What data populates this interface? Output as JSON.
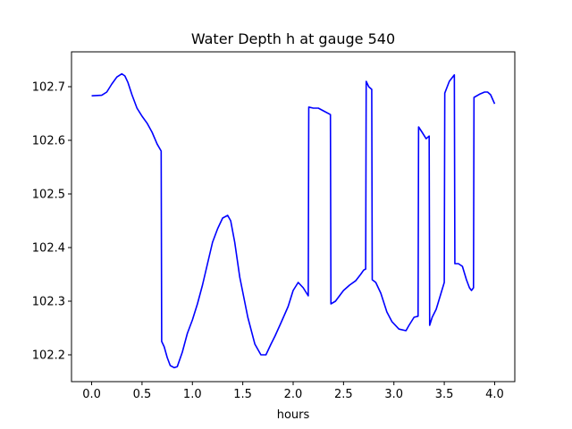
{
  "chart_data": {
    "type": "line",
    "title": "Water Depth h at gauge 540",
    "xlabel": "hours",
    "ylabel": "",
    "xlim": [
      -0.2,
      4.2
    ],
    "ylim": [
      102.15,
      102.765
    ],
    "grid": false,
    "legend": "none",
    "x_ticks": [
      0.0,
      0.5,
      1.0,
      1.5,
      2.0,
      2.5,
      3.0,
      3.5,
      4.0
    ],
    "x_tick_labels": [
      "0.0",
      "0.5",
      "1.0",
      "1.5",
      "2.0",
      "2.5",
      "3.0",
      "3.5",
      "4.0"
    ],
    "y_ticks": [
      102.2,
      102.3,
      102.4,
      102.5,
      102.6,
      102.7
    ],
    "y_tick_labels": [
      "102.2",
      "102.3",
      "102.4",
      "102.5",
      "102.6",
      "102.7"
    ],
    "colors": {
      "line": "#0000ff",
      "axes": "#000000",
      "background": "#ffffff"
    },
    "series": [
      {
        "x": [
          0.0,
          0.1,
          0.15,
          0.2,
          0.25,
          0.3,
          0.33,
          0.36,
          0.4,
          0.45,
          0.5,
          0.55,
          0.6,
          0.65,
          0.69,
          0.695,
          0.72,
          0.75,
          0.78,
          0.82,
          0.85,
          0.9,
          0.95,
          1.0,
          1.05,
          1.1,
          1.15,
          1.2,
          1.25,
          1.3,
          1.35,
          1.38,
          1.42,
          1.47,
          1.55,
          1.62,
          1.68,
          1.73,
          1.78,
          1.82,
          1.88,
          1.95,
          2.0,
          2.05,
          2.1,
          2.15,
          2.155,
          2.2,
          2.25,
          2.3,
          2.37,
          2.375,
          2.42,
          2.5,
          2.56,
          2.62,
          2.67,
          2.7,
          2.72,
          2.725,
          2.75,
          2.78,
          2.785,
          2.82,
          2.87,
          2.93,
          2.98,
          3.05,
          3.12,
          3.15,
          3.2,
          3.24,
          3.245,
          3.28,
          3.32,
          3.35,
          3.355,
          3.38,
          3.42,
          3.46,
          3.5,
          3.505,
          3.55,
          3.6,
          3.605,
          3.64,
          3.68,
          3.72,
          3.75,
          3.77,
          3.79,
          3.795,
          3.85,
          3.9,
          3.93,
          3.96,
          4.0
        ],
        "y": [
          102.683,
          102.684,
          102.69,
          102.705,
          102.718,
          102.724,
          102.72,
          102.708,
          102.685,
          102.66,
          102.645,
          102.632,
          102.615,
          102.593,
          102.58,
          102.225,
          102.215,
          102.195,
          102.18,
          102.176,
          102.178,
          102.205,
          102.24,
          102.265,
          102.295,
          102.33,
          102.37,
          102.41,
          102.435,
          102.455,
          102.46,
          102.45,
          102.41,
          102.345,
          102.27,
          102.22,
          102.2,
          102.2,
          102.22,
          102.235,
          102.26,
          102.29,
          102.32,
          102.335,
          102.325,
          102.31,
          102.662,
          102.66,
          102.66,
          102.655,
          102.648,
          102.295,
          102.3,
          102.32,
          102.33,
          102.338,
          102.35,
          102.358,
          102.36,
          102.71,
          102.7,
          102.695,
          102.34,
          102.335,
          102.315,
          102.28,
          102.262,
          102.248,
          102.245,
          102.255,
          102.27,
          102.272,
          102.625,
          102.615,
          102.603,
          102.608,
          102.255,
          102.27,
          102.285,
          102.31,
          102.335,
          102.688,
          102.71,
          102.722,
          102.37,
          102.37,
          102.365,
          102.34,
          102.325,
          102.32,
          102.325,
          102.68,
          102.686,
          102.69,
          102.69,
          102.685,
          102.668
        ]
      }
    ]
  }
}
